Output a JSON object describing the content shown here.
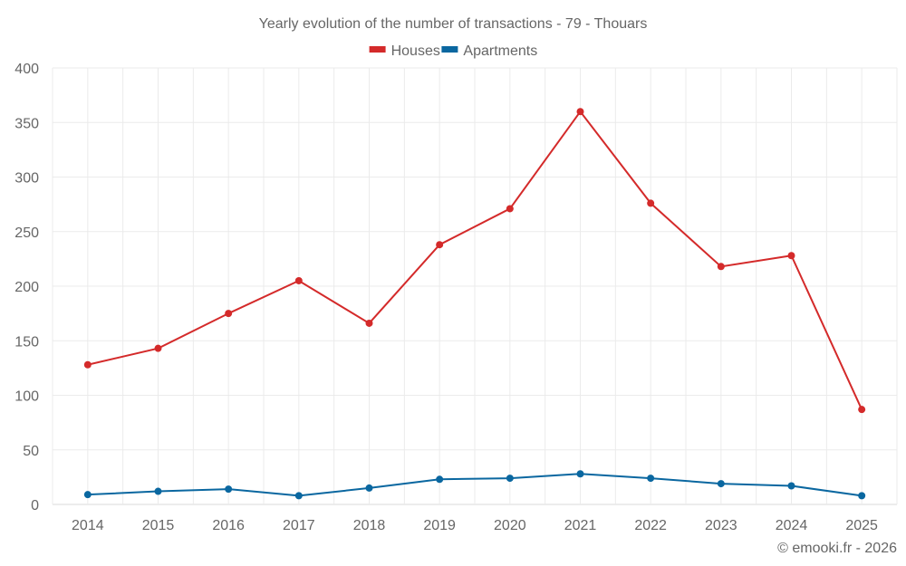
{
  "chart_data": {
    "type": "line",
    "title": "Yearly evolution of the number of transactions - 79 - Thouars",
    "xlabel": "",
    "ylabel": "",
    "categories": [
      "2014",
      "2015",
      "2016",
      "2017",
      "2018",
      "2019",
      "2020",
      "2021",
      "2022",
      "2023",
      "2024",
      "2025"
    ],
    "series": [
      {
        "name": "Houses",
        "color": "#d42a2a",
        "values": [
          128,
          143,
          175,
          205,
          166,
          238,
          271,
          360,
          276,
          218,
          228,
          87
        ]
      },
      {
        "name": "Apartments",
        "color": "#0a67a0",
        "values": [
          9,
          12,
          14,
          8,
          15,
          23,
          24,
          28,
          24,
          19,
          17,
          8
        ]
      }
    ],
    "ylim": [
      0,
      400
    ],
    "yticks": [
      0,
      50,
      100,
      150,
      200,
      250,
      300,
      350,
      400
    ],
    "grid": true,
    "legend_position": "top-center"
  },
  "credit": "© emooki.fr - 2026"
}
